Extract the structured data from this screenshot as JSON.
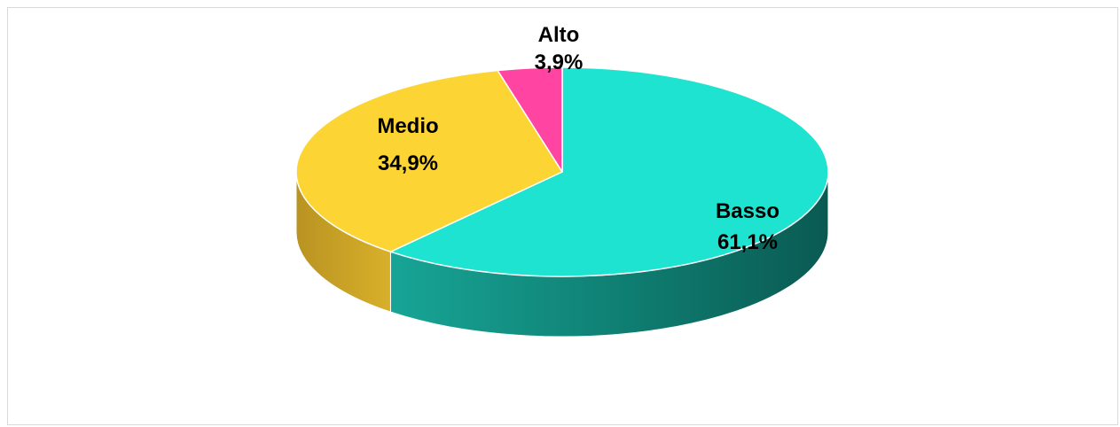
{
  "chart_data": {
    "type": "pie",
    "style": "3d",
    "slices": [
      {
        "name": "Basso",
        "value": 61.1,
        "label": "61,1%",
        "color": "#1ee3d0",
        "side_color": "#0e7a6f"
      },
      {
        "name": "Medio",
        "value": 34.9,
        "label": "34,9%",
        "color": "#fcd535",
        "side_color": "#c9a21e"
      },
      {
        "name": "Alto",
        "value": 3.9,
        "label": "3,9%",
        "color": "#ff44a1",
        "side_color": "#b8306f"
      }
    ],
    "legend": "none"
  }
}
